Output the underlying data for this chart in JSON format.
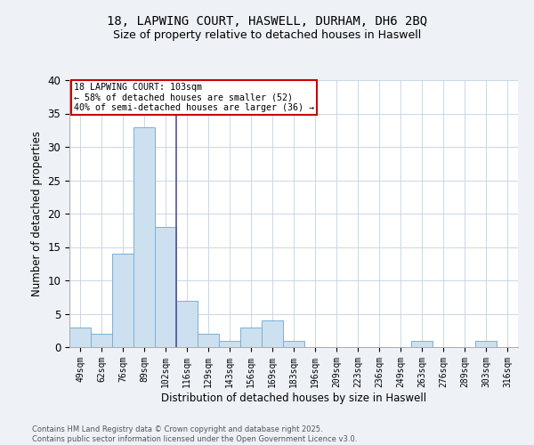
{
  "title1": "18, LAPWING COURT, HASWELL, DURHAM, DH6 2BQ",
  "title2": "Size of property relative to detached houses in Haswell",
  "xlabel": "Distribution of detached houses by size in Haswell",
  "ylabel": "Number of detached properties",
  "bar_labels": [
    "49sqm",
    "62sqm",
    "76sqm",
    "89sqm",
    "102sqm",
    "116sqm",
    "129sqm",
    "143sqm",
    "156sqm",
    "169sqm",
    "183sqm",
    "196sqm",
    "209sqm",
    "223sqm",
    "236sqm",
    "249sqm",
    "263sqm",
    "276sqm",
    "289sqm",
    "303sqm",
    "316sqm"
  ],
  "bar_values": [
    3,
    2,
    14,
    33,
    18,
    7,
    2,
    1,
    3,
    4,
    1,
    0,
    0,
    0,
    0,
    0,
    1,
    0,
    0,
    1,
    0
  ],
  "bar_color": "#cce0f0",
  "bar_edge_color": "#7ab0d4",
  "vline_color": "#5050a0",
  "annotation_text": "18 LAPWING COURT: 103sqm\n← 58% of detached houses are smaller (52)\n40% of semi-detached houses are larger (36) →",
  "annotation_box_color": "white",
  "annotation_box_edge": "#cc0000",
  "ylim": [
    0,
    40
  ],
  "yticks": [
    0,
    5,
    10,
    15,
    20,
    25,
    30,
    35,
    40
  ],
  "footer_text": "Contains HM Land Registry data © Crown copyright and database right 2025.\nContains public sector information licensed under the Open Government Licence v3.0.",
  "bg_color": "#eef2f7",
  "plot_bg": "#ffffff",
  "grid_color": "#c8d8e8",
  "title_fontsize": 10,
  "subtitle_fontsize": 9
}
